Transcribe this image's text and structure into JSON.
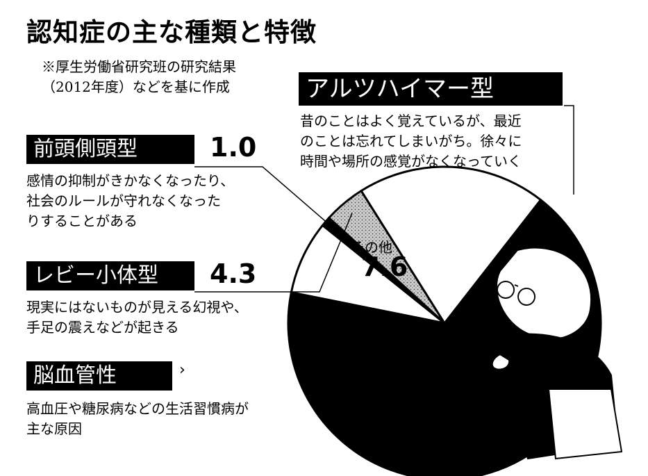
{
  "title": "認知症の主な種類と特徴",
  "note": {
    "line1": "※厚生労働省研究班の研究結果",
    "line2": "（2012年度）などを基に作成"
  },
  "chart_data": {
    "type": "pie",
    "title": "認知症の主な種類と特徴",
    "series": [
      {
        "name": "アルツハイマー型",
        "value": 67.6,
        "label": "67.6%",
        "fill": "#000000",
        "description": [
          "昔のことはよく覚えているが、最近",
          "のことは忘れてしまいがち。徐々に",
          "時間や場所の感覚がなくなっていく"
        ]
      },
      {
        "name": "その他",
        "value": 7.6,
        "label": "7.6",
        "fill": "#ffffff",
        "description": []
      },
      {
        "name": "レビー小体型",
        "value": 4.3,
        "label": "4.3",
        "fill": "#bdbdbd",
        "description": [
          "現実にはないものが見える幻視や、",
          "手足の震えなどが起きる"
        ]
      },
      {
        "name": "前頭側頭型",
        "value": 1.0,
        "label": "1.0",
        "fill": "#000000",
        "description": [
          "感情の抑制がきかなくなったり、",
          "社会のルールが守れなくなった",
          "りすることがある"
        ]
      },
      {
        "name": "脳血管性",
        "value": 19.5,
        "label": "",
        "fill": "#ffffff",
        "description": [
          "高血圧や糖尿病などの生活習慣病が",
          "主な原因"
        ]
      }
    ],
    "legend_placement": "left",
    "colors": {
      "dark": "#000000",
      "light": "#ffffff",
      "dotted": "#bdbdbd"
    }
  }
}
